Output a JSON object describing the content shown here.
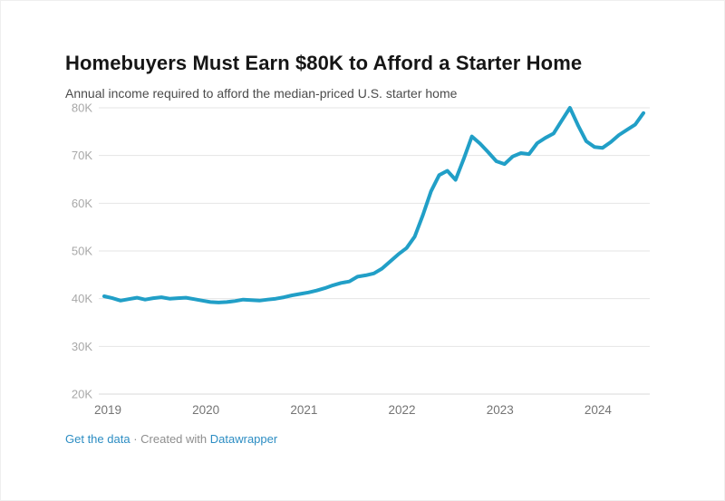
{
  "header": {
    "title": "Homebuyers Must Earn $80K to Afford a Starter Home",
    "subtitle": "Annual income required to afford the median-priced U.S. starter home"
  },
  "chart_data": {
    "type": "line",
    "title": "Homebuyers Must Earn $80K to Afford a Starter Home",
    "subtitle": "Annual income required to afford the median-priced U.S. starter home",
    "value_unit": "thousand USD per year",
    "ylim": [
      20,
      80
    ],
    "ytick_labels": [
      "20K",
      "30K",
      "40K",
      "50K",
      "60K",
      "70K",
      "80K"
    ],
    "ytick_values": [
      20,
      30,
      40,
      50,
      60,
      70,
      80
    ],
    "xtick_labels": [
      "2019",
      "2020",
      "2021",
      "2022",
      "2023",
      "2024"
    ],
    "xtick_month_index": [
      0,
      12,
      24,
      36,
      48,
      60
    ],
    "grid": "horizontal",
    "legend": "none",
    "line_color": "#219fc7",
    "x": [
      "2019-01",
      "2019-02",
      "2019-03",
      "2019-04",
      "2019-05",
      "2019-06",
      "2019-07",
      "2019-08",
      "2019-09",
      "2019-10",
      "2019-11",
      "2019-12",
      "2020-01",
      "2020-02",
      "2020-03",
      "2020-04",
      "2020-05",
      "2020-06",
      "2020-07",
      "2020-08",
      "2020-09",
      "2020-10",
      "2020-11",
      "2020-12",
      "2021-01",
      "2021-02",
      "2021-03",
      "2021-04",
      "2021-05",
      "2021-06",
      "2021-07",
      "2021-08",
      "2021-09",
      "2021-10",
      "2021-11",
      "2021-12",
      "2022-01",
      "2022-02",
      "2022-03",
      "2022-04",
      "2022-05",
      "2022-06",
      "2022-07",
      "2022-08",
      "2022-09",
      "2022-10",
      "2022-11",
      "2022-12",
      "2023-01",
      "2023-02",
      "2023-03",
      "2023-04",
      "2023-05",
      "2023-06",
      "2023-07",
      "2023-08",
      "2023-09",
      "2023-10",
      "2023-11",
      "2023-12",
      "2024-01",
      "2024-02",
      "2024-03",
      "2024-04",
      "2024-05",
      "2024-06",
      "2024-07"
    ],
    "values": [
      40.5,
      40.1,
      39.6,
      39.9,
      40.2,
      39.8,
      40.1,
      40.3,
      40.0,
      40.1,
      40.2,
      39.9,
      39.6,
      39.3,
      39.2,
      39.3,
      39.5,
      39.8,
      39.7,
      39.6,
      39.8,
      40.0,
      40.3,
      40.7,
      41.0,
      41.3,
      41.7,
      42.2,
      42.8,
      43.3,
      43.6,
      44.6,
      44.9,
      45.3,
      46.3,
      47.8,
      49.3,
      50.6,
      53.0,
      57.5,
      62.5,
      65.9,
      66.8,
      64.9,
      69.3,
      74.0,
      72.5,
      70.7,
      68.8,
      68.2,
      69.8,
      70.5,
      70.3,
      72.6,
      73.7,
      74.6,
      77.3,
      80.0,
      76.3,
      73.0,
      71.8,
      71.6,
      72.8,
      74.3,
      75.4,
      76.5,
      78.9
    ]
  },
  "styles": {
    "grid_color": "#e4e4e4",
    "baseline_color": "#d9d9d9",
    "ytick_color": "#a8a8a8",
    "xtick_color": "#747474",
    "link_color": "#2c8dc3",
    "footer_gray": "#8e8e8e"
  },
  "footer": {
    "get_data_label": "Get the data",
    "separator": "·",
    "credit_label": "Created with",
    "tool_link_label": "Datawrapper"
  }
}
